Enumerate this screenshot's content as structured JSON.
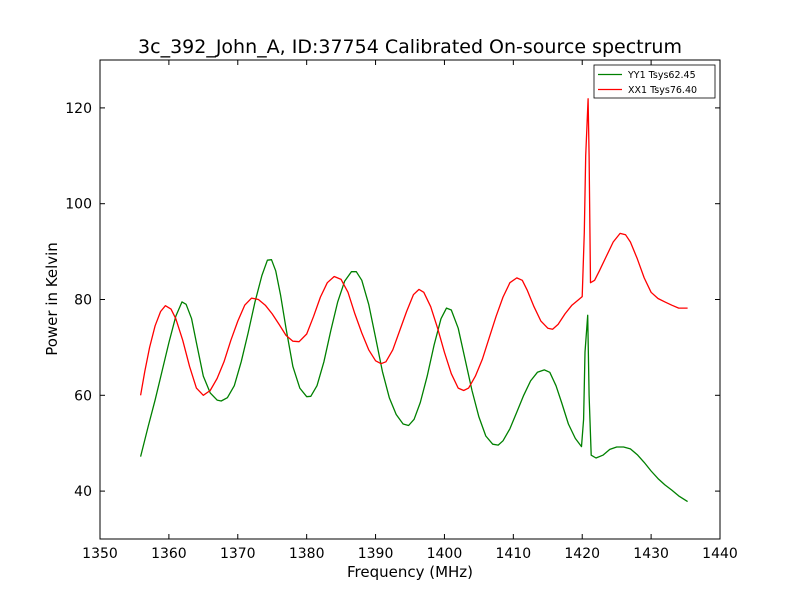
{
  "chart_data": {
    "type": "line",
    "title": "3c_392_John_A, ID:37754 Calibrated On-source spectrum",
    "xlabel": "Frequency (MHz)",
    "ylabel": "Power in Kelvin",
    "xlim": [
      1350,
      1440
    ],
    "ylim": [
      30,
      130
    ],
    "xticks": [
      1350,
      1360,
      1370,
      1380,
      1390,
      1400,
      1410,
      1420,
      1430,
      1440
    ],
    "yticks": [
      40,
      60,
      80,
      100,
      120
    ],
    "legend_position": "top-right",
    "grid": false,
    "series": [
      {
        "name": "YY1 Tsys62.45",
        "color": "#008000",
        "points": [
          [
            1355.9,
            47.2
          ],
          [
            1357.0,
            53.5
          ],
          [
            1358.0,
            59.0
          ],
          [
            1359.0,
            65.0
          ],
          [
            1360.0,
            71.0
          ],
          [
            1361.0,
            76.5
          ],
          [
            1361.9,
            79.5
          ],
          [
            1362.5,
            79.0
          ],
          [
            1363.3,
            76.0
          ],
          [
            1364.0,
            71.0
          ],
          [
            1365.0,
            64.0
          ],
          [
            1366.0,
            60.5
          ],
          [
            1367.0,
            59.0
          ],
          [
            1367.6,
            58.8
          ],
          [
            1368.5,
            59.5
          ],
          [
            1369.5,
            62.0
          ],
          [
            1370.5,
            67.0
          ],
          [
            1371.5,
            73.0
          ],
          [
            1372.5,
            79.5
          ],
          [
            1373.5,
            85.0
          ],
          [
            1374.3,
            88.2
          ],
          [
            1374.9,
            88.3
          ],
          [
            1375.5,
            86.0
          ],
          [
            1376.2,
            81.0
          ],
          [
            1377.0,
            74.0
          ],
          [
            1378.0,
            66.0
          ],
          [
            1379.0,
            61.5
          ],
          [
            1380.0,
            59.7
          ],
          [
            1380.6,
            59.8
          ],
          [
            1381.5,
            62.0
          ],
          [
            1382.5,
            67.0
          ],
          [
            1383.5,
            73.5
          ],
          [
            1384.5,
            79.5
          ],
          [
            1385.5,
            83.8
          ],
          [
            1386.5,
            85.8
          ],
          [
            1387.2,
            85.8
          ],
          [
            1388.0,
            84.0
          ],
          [
            1389.0,
            79.0
          ],
          [
            1390.0,
            72.0
          ],
          [
            1391.0,
            65.0
          ],
          [
            1392.0,
            59.5
          ],
          [
            1393.0,
            56.0
          ],
          [
            1394.0,
            54.0
          ],
          [
            1394.8,
            53.7
          ],
          [
            1395.6,
            55.0
          ],
          [
            1396.5,
            58.5
          ],
          [
            1397.5,
            64.0
          ],
          [
            1398.5,
            70.5
          ],
          [
            1399.5,
            76.0
          ],
          [
            1400.3,
            78.2
          ],
          [
            1401.0,
            77.8
          ],
          [
            1402.0,
            74.0
          ],
          [
            1403.0,
            67.5
          ],
          [
            1404.0,
            61.0
          ],
          [
            1405.0,
            55.5
          ],
          [
            1406.0,
            51.5
          ],
          [
            1407.0,
            49.8
          ],
          [
            1407.8,
            49.6
          ],
          [
            1408.5,
            50.5
          ],
          [
            1409.5,
            53.0
          ],
          [
            1410.5,
            56.5
          ],
          [
            1411.5,
            60.0
          ],
          [
            1412.5,
            63.0
          ],
          [
            1413.5,
            64.8
          ],
          [
            1414.5,
            65.3
          ],
          [
            1415.3,
            64.8
          ],
          [
            1416.2,
            62.0
          ],
          [
            1417.0,
            58.5
          ],
          [
            1418.0,
            54.0
          ],
          [
            1419.0,
            51.0
          ],
          [
            1419.9,
            49.3
          ],
          [
            1420.2,
            55.0
          ],
          [
            1420.4,
            69.0
          ],
          [
            1420.8,
            76.7
          ],
          [
            1421.0,
            60.0
          ],
          [
            1421.3,
            47.5
          ],
          [
            1422.0,
            46.9
          ],
          [
            1423.0,
            47.5
          ],
          [
            1424.0,
            48.7
          ],
          [
            1425.0,
            49.2
          ],
          [
            1426.0,
            49.2
          ],
          [
            1427.0,
            48.8
          ],
          [
            1428.0,
            47.6
          ],
          [
            1429.0,
            46.0
          ],
          [
            1430.0,
            44.2
          ],
          [
            1431.0,
            42.6
          ],
          [
            1432.0,
            41.3
          ],
          [
            1433.0,
            40.2
          ],
          [
            1434.0,
            39.0
          ],
          [
            1435.3,
            37.8
          ]
        ]
      },
      {
        "name": "XX1 Tsys76.40",
        "color": "#ff0000",
        "points": [
          [
            1355.9,
            60.0
          ],
          [
            1356.5,
            65.0
          ],
          [
            1357.2,
            70.0
          ],
          [
            1358.0,
            74.5
          ],
          [
            1358.8,
            77.5
          ],
          [
            1359.5,
            78.7
          ],
          [
            1360.3,
            78.0
          ],
          [
            1361.0,
            76.0
          ],
          [
            1362.0,
            71.5
          ],
          [
            1363.0,
            66.0
          ],
          [
            1364.0,
            61.5
          ],
          [
            1365.0,
            60.0
          ],
          [
            1366.0,
            61.0
          ],
          [
            1367.0,
            63.5
          ],
          [
            1368.0,
            67.0
          ],
          [
            1369.0,
            71.5
          ],
          [
            1370.0,
            75.5
          ],
          [
            1371.0,
            78.8
          ],
          [
            1372.0,
            80.3
          ],
          [
            1373.0,
            80.0
          ],
          [
            1374.0,
            78.8
          ],
          [
            1375.0,
            77.0
          ],
          [
            1376.0,
            74.8
          ],
          [
            1377.0,
            72.5
          ],
          [
            1378.0,
            71.3
          ],
          [
            1378.9,
            71.2
          ],
          [
            1380.0,
            72.8
          ],
          [
            1381.0,
            76.5
          ],
          [
            1382.0,
            80.5
          ],
          [
            1383.0,
            83.5
          ],
          [
            1384.0,
            84.8
          ],
          [
            1385.0,
            84.2
          ],
          [
            1386.0,
            81.5
          ],
          [
            1387.0,
            77.0
          ],
          [
            1388.0,
            73.0
          ],
          [
            1389.0,
            69.5
          ],
          [
            1390.0,
            67.2
          ],
          [
            1390.8,
            66.6
          ],
          [
            1391.5,
            67.0
          ],
          [
            1392.5,
            69.5
          ],
          [
            1393.5,
            73.5
          ],
          [
            1394.5,
            77.5
          ],
          [
            1395.5,
            81.0
          ],
          [
            1396.3,
            82.1
          ],
          [
            1397.0,
            81.5
          ],
          [
            1398.0,
            78.5
          ],
          [
            1399.0,
            74.0
          ],
          [
            1400.0,
            69.0
          ],
          [
            1401.0,
            64.5
          ],
          [
            1402.0,
            61.5
          ],
          [
            1402.8,
            61.0
          ],
          [
            1403.5,
            61.5
          ],
          [
            1404.5,
            64.0
          ],
          [
            1405.5,
            67.5
          ],
          [
            1406.5,
            72.0
          ],
          [
            1407.5,
            76.5
          ],
          [
            1408.5,
            80.5
          ],
          [
            1409.5,
            83.5
          ],
          [
            1410.5,
            84.5
          ],
          [
            1411.3,
            84.0
          ],
          [
            1412.0,
            82.0
          ],
          [
            1413.0,
            78.5
          ],
          [
            1414.0,
            75.5
          ],
          [
            1415.0,
            74.0
          ],
          [
            1415.7,
            73.8
          ],
          [
            1416.5,
            74.8
          ],
          [
            1417.5,
            77.0
          ],
          [
            1418.5,
            78.8
          ],
          [
            1419.5,
            80.0
          ],
          [
            1420.0,
            80.6
          ],
          [
            1420.3,
            94.0
          ],
          [
            1420.5,
            110.0
          ],
          [
            1420.85,
            121.9
          ],
          [
            1421.0,
            110.0
          ],
          [
            1421.2,
            83.5
          ],
          [
            1421.8,
            84.0
          ],
          [
            1422.5,
            86.0
          ],
          [
            1423.5,
            89.0
          ],
          [
            1424.5,
            92.0
          ],
          [
            1425.5,
            93.8
          ],
          [
            1426.3,
            93.5
          ],
          [
            1427.0,
            92.0
          ],
          [
            1428.0,
            88.5
          ],
          [
            1429.0,
            84.5
          ],
          [
            1430.0,
            81.5
          ],
          [
            1431.0,
            80.2
          ],
          [
            1432.0,
            79.5
          ],
          [
            1433.0,
            78.8
          ],
          [
            1434.0,
            78.2
          ],
          [
            1435.3,
            78.2
          ]
        ]
      }
    ]
  }
}
